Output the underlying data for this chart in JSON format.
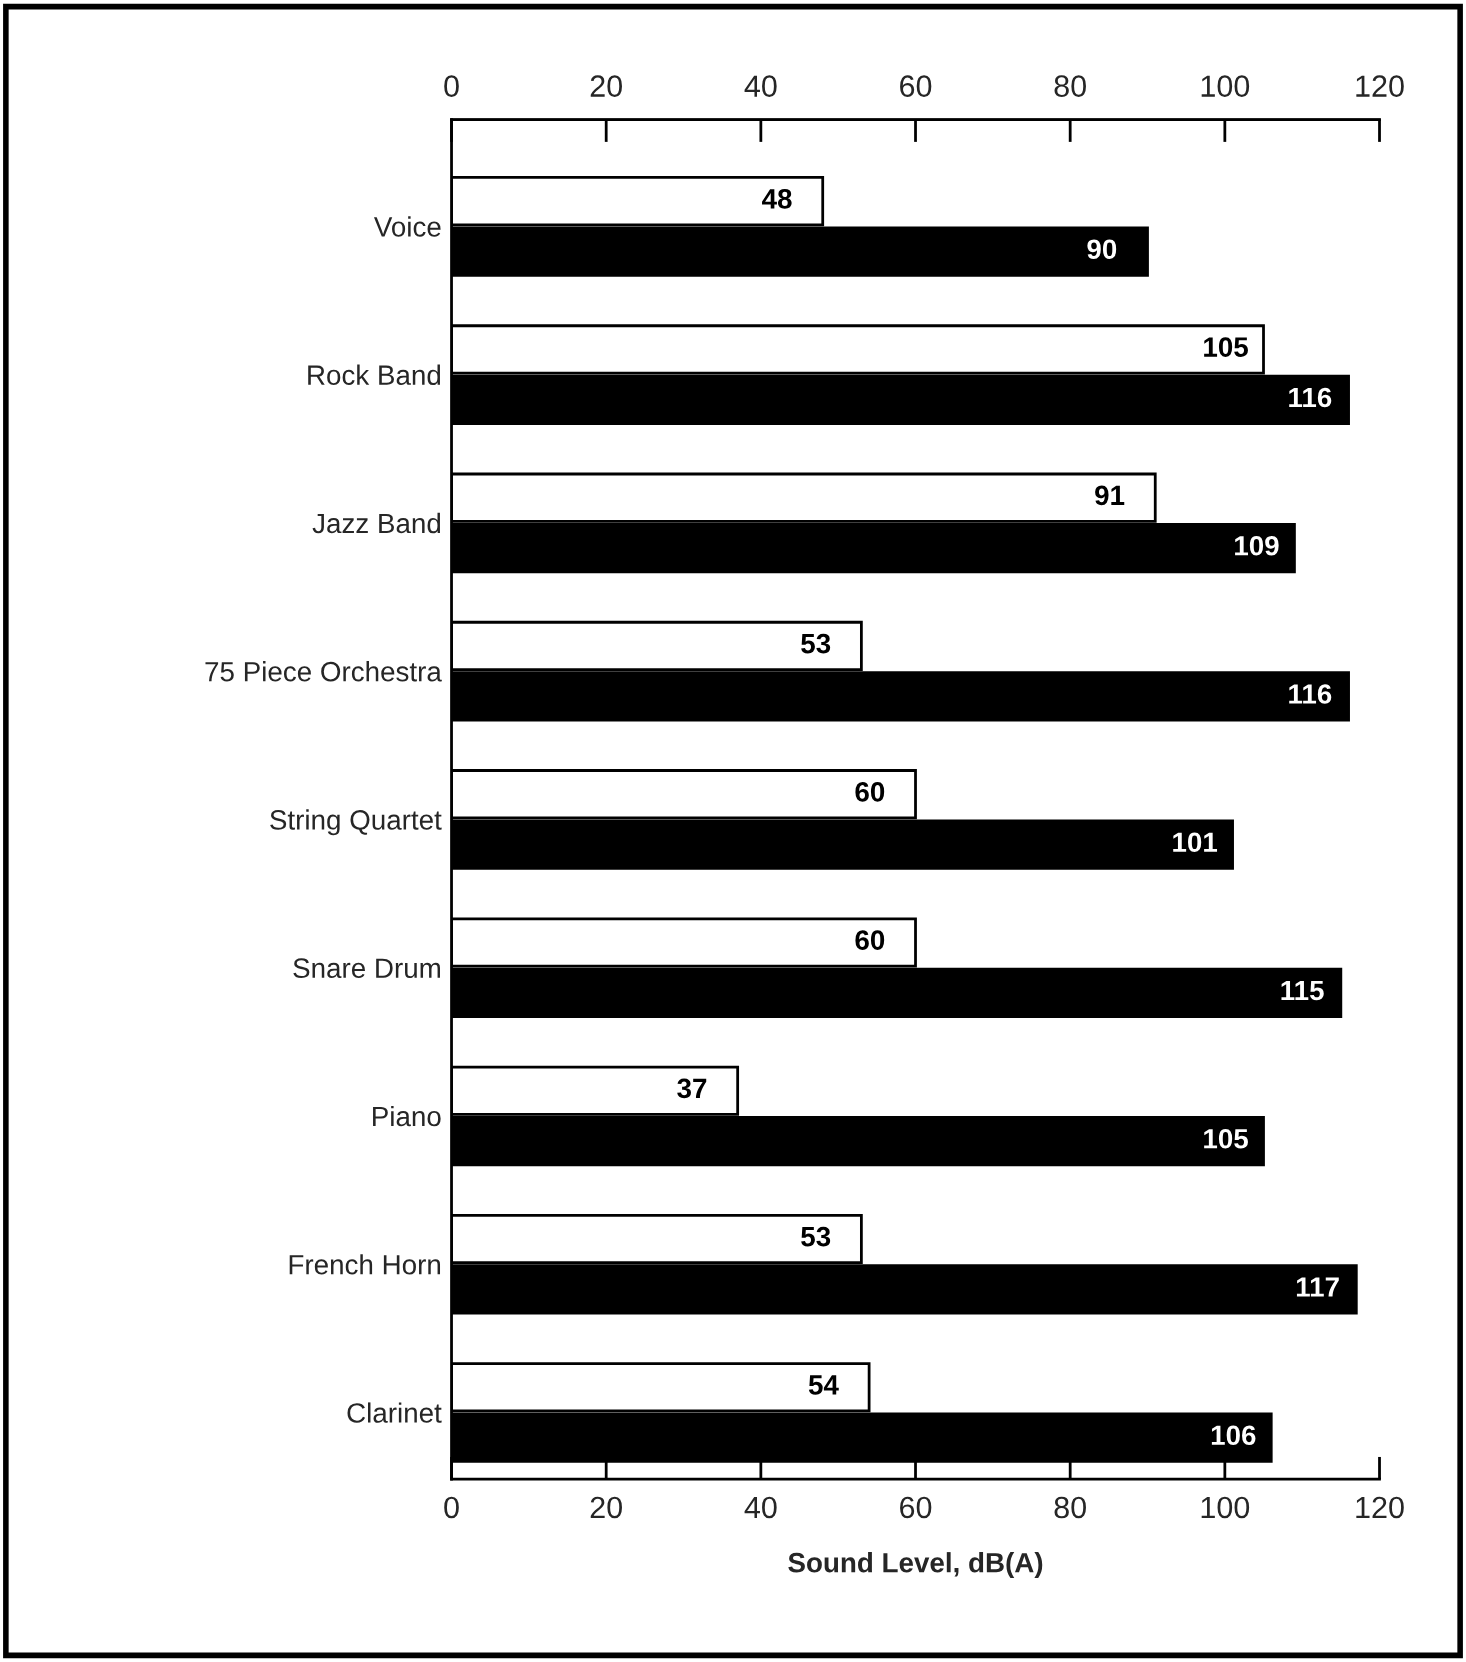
{
  "chart_data": {
    "type": "bar",
    "orientation": "horizontal",
    "xlabel": "Sound Level, dB(A)",
    "categories": [
      "Voice",
      "Rock Band",
      "Jazz Band",
      "75 Piece Orchestra",
      "String Quartet",
      "Snare Drum",
      "Piano",
      "French Horn",
      "Clarinet"
    ],
    "series": [
      {
        "color": "#ffffff",
        "values": [
          48,
          105,
          91,
          53,
          60,
          60,
          37,
          53,
          54
        ]
      },
      {
        "color": "#000000",
        "values": [
          90,
          116,
          109,
          116,
          101,
          115,
          105,
          117,
          106
        ]
      }
    ],
    "xlim": [
      0,
      120
    ],
    "xticks": [
      0,
      20,
      40,
      60,
      80,
      100,
      120
    ],
    "x2lim": [
      0,
      120
    ],
    "x2ticks": [
      0,
      20,
      40,
      60,
      80,
      100,
      120
    ],
    "data_labels": true,
    "grid": false,
    "legend": false
  }
}
